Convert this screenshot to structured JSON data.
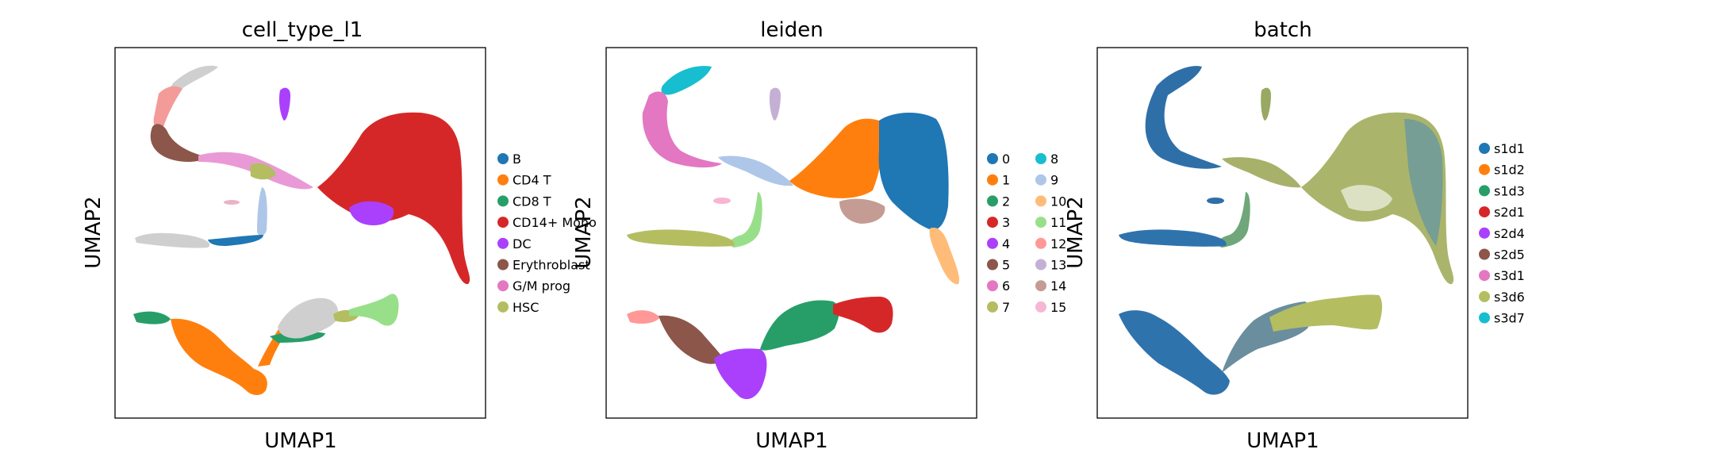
{
  "chart_data": [
    {
      "type": "scatter",
      "title": "cell_type_l1",
      "xlabel": "UMAP1",
      "ylabel": "UMAP2",
      "grid": false,
      "ticks": false,
      "legend_position": "right",
      "legend": [
        {
          "label": "B",
          "color": "#1f77b4"
        },
        {
          "label": "CD4 T",
          "color": "#ff7f0e"
        },
        {
          "label": "CD8 T",
          "color": "#279e68"
        },
        {
          "label": "CD14+ Mono",
          "color": "#d62728"
        },
        {
          "label": "DC",
          "color": "#aa40fc"
        },
        {
          "label": "Erythroblast",
          "color": "#8c564b"
        },
        {
          "label": "G/M prog",
          "color": "#e377c2"
        },
        {
          "label": "HSC",
          "color": "#b5bd61"
        }
      ]
    },
    {
      "type": "scatter",
      "title": "leiden",
      "xlabel": "UMAP1",
      "ylabel": "UMAP2",
      "grid": false,
      "ticks": false,
      "legend_position": "right",
      "legend_columns": 2,
      "legend": [
        {
          "label": "0",
          "color": "#1f77b4"
        },
        {
          "label": "1",
          "color": "#ff7f0e"
        },
        {
          "label": "2",
          "color": "#279e68"
        },
        {
          "label": "3",
          "color": "#d62728"
        },
        {
          "label": "4",
          "color": "#aa40fc"
        },
        {
          "label": "5",
          "color": "#8c564b"
        },
        {
          "label": "6",
          "color": "#e377c2"
        },
        {
          "label": "7",
          "color": "#b5bd61"
        },
        {
          "label": "8",
          "color": "#17becf"
        },
        {
          "label": "9",
          "color": "#aec7e8"
        },
        {
          "label": "10",
          "color": "#ffbb78"
        },
        {
          "label": "11",
          "color": "#98df8a"
        },
        {
          "label": "12",
          "color": "#ff9896"
        },
        {
          "label": "13",
          "color": "#c5b0d5"
        },
        {
          "label": "14",
          "color": "#c49c94"
        },
        {
          "label": "15",
          "color": "#f7b6d2"
        }
      ]
    },
    {
      "type": "scatter",
      "title": "batch",
      "xlabel": "UMAP1",
      "ylabel": "UMAP2",
      "grid": false,
      "ticks": false,
      "legend_position": "right",
      "legend": [
        {
          "label": "s1d1",
          "color": "#1f77b4"
        },
        {
          "label": "s1d2",
          "color": "#ff7f0e"
        },
        {
          "label": "s1d3",
          "color": "#279e68"
        },
        {
          "label": "s2d1",
          "color": "#d62728"
        },
        {
          "label": "s2d4",
          "color": "#aa40fc"
        },
        {
          "label": "s2d5",
          "color": "#8c564b"
        },
        {
          "label": "s3d1",
          "color": "#e377c2"
        },
        {
          "label": "s3d6",
          "color": "#b5bd61"
        },
        {
          "label": "s3d7",
          "color": "#17becf"
        }
      ]
    }
  ]
}
